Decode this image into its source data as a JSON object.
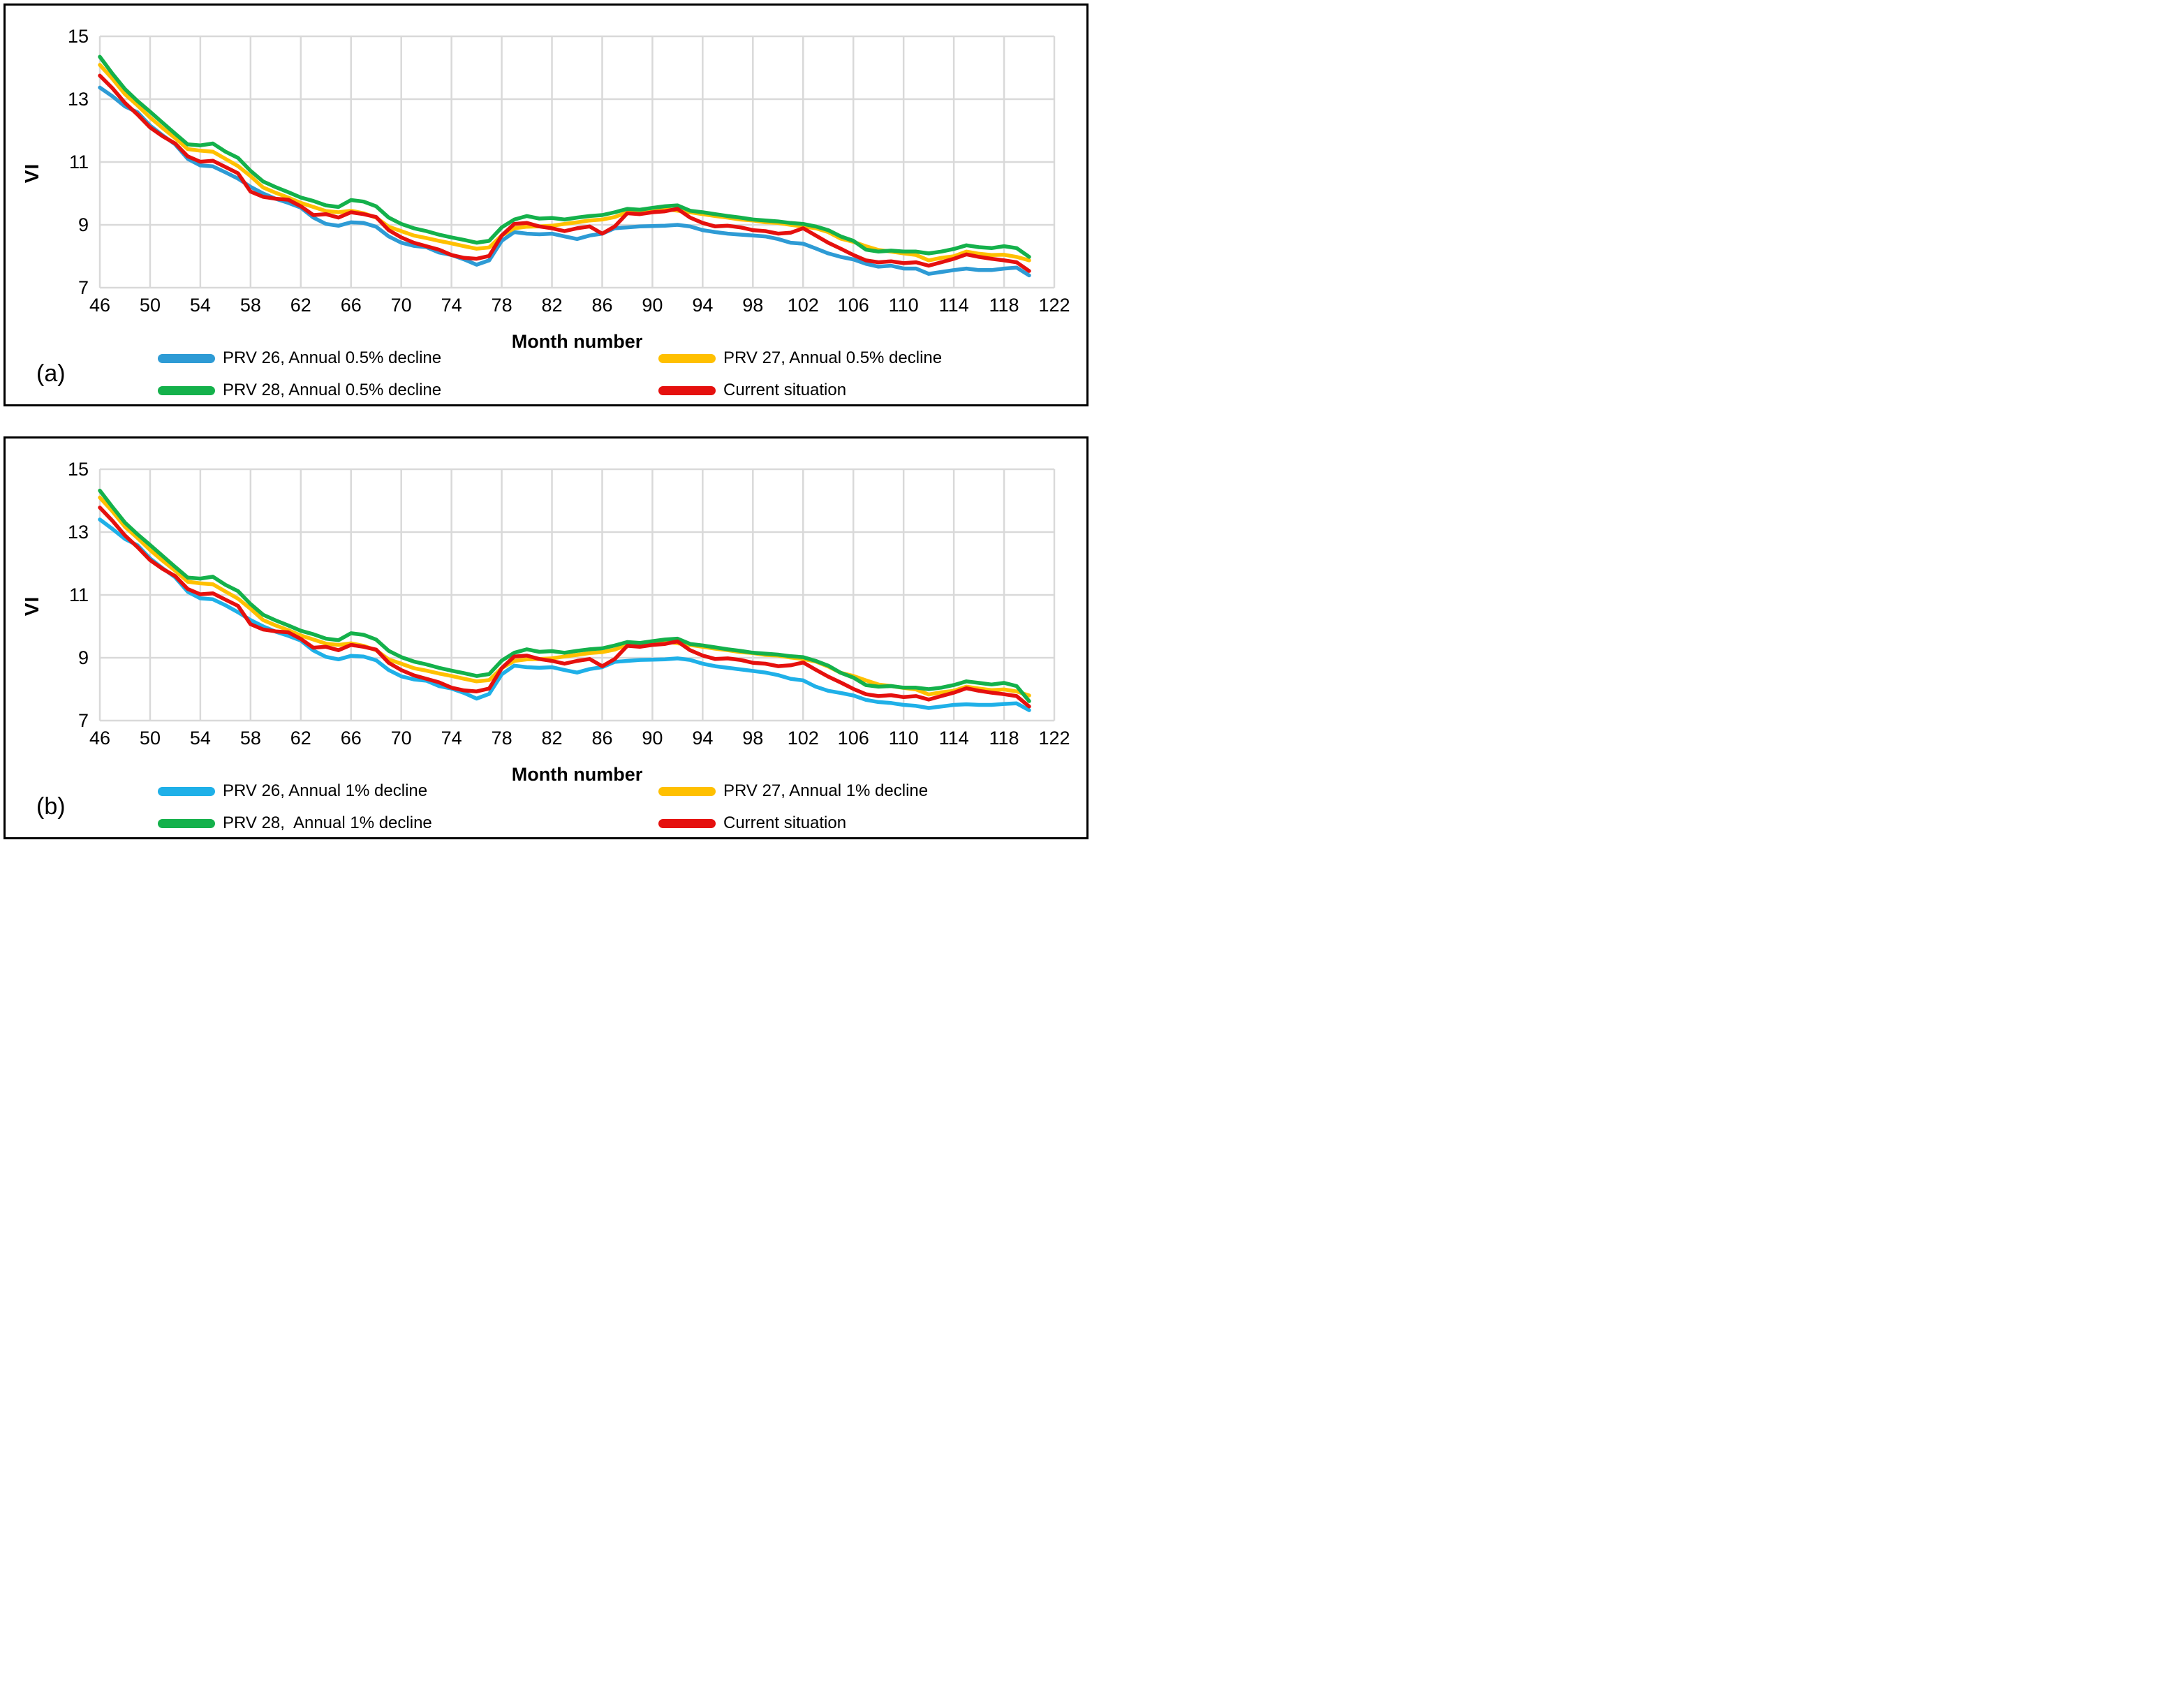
{
  "chart_data": [
    {
      "type": "line",
      "panel_label": "(a)",
      "xlabel": "Month number",
      "ylabel": "VI",
      "xlim": [
        46,
        122
      ],
      "ylim": [
        7,
        15
      ],
      "x_ticks": [
        46,
        50,
        54,
        58,
        62,
        66,
        70,
        74,
        78,
        82,
        86,
        90,
        94,
        98,
        102,
        106,
        110,
        114,
        118,
        122
      ],
      "y_ticks": [
        7,
        9,
        11,
        13,
        15
      ],
      "grid": true,
      "legend_position": "bottom",
      "x": [
        46,
        47,
        48,
        49,
        50,
        51,
        52,
        53,
        54,
        55,
        56,
        57,
        58,
        59,
        60,
        61,
        62,
        63,
        64,
        65,
        66,
        67,
        68,
        69,
        70,
        71,
        72,
        73,
        74,
        75,
        76,
        77,
        78,
        79,
        80,
        81,
        82,
        83,
        84,
        85,
        86,
        87,
        88,
        89,
        90,
        91,
        92,
        93,
        94,
        95,
        96,
        97,
        98,
        99,
        100,
        101,
        102,
        103,
        104,
        105,
        106,
        107,
        108,
        109,
        110,
        111,
        112,
        113,
        114,
        115,
        116,
        117,
        118,
        119,
        120
      ],
      "series": [
        {
          "name": "PRV 26, Annual 0.5% decline",
          "color": "#2E9BD5",
          "values": [
            13.37,
            13.09,
            12.77,
            12.58,
            12.16,
            11.85,
            11.56,
            11.1,
            10.89,
            10.86,
            10.67,
            10.47,
            10.21,
            10.0,
            9.83,
            9.7,
            9.55,
            9.23,
            9.03,
            8.97,
            9.08,
            9.06,
            8.94,
            8.63,
            8.43,
            8.33,
            8.29,
            8.12,
            8.04,
            7.9,
            7.73,
            7.87,
            8.49,
            8.77,
            8.72,
            8.7,
            8.72,
            8.63,
            8.55,
            8.66,
            8.72,
            8.89,
            8.92,
            8.95,
            8.96,
            8.97,
            9.0,
            8.95,
            8.83,
            8.77,
            8.72,
            8.69,
            8.66,
            8.63,
            8.55,
            8.43,
            8.4,
            8.25,
            8.09,
            7.98,
            7.9,
            7.76,
            7.67,
            7.7,
            7.61,
            7.61,
            7.44,
            7.5,
            7.56,
            7.61,
            7.56,
            7.56,
            7.61,
            7.64,
            7.39
          ]
        },
        {
          "name": "PRV 27, Annual 0.5% decline",
          "color": "#FFC000",
          "values": [
            14.09,
            13.65,
            13.16,
            12.8,
            12.42,
            12.08,
            11.76,
            11.41,
            11.36,
            11.33,
            11.1,
            10.87,
            10.55,
            10.19,
            10.02,
            9.87,
            9.7,
            9.57,
            9.44,
            9.4,
            9.45,
            9.37,
            9.23,
            8.94,
            8.8,
            8.66,
            8.58,
            8.49,
            8.41,
            8.32,
            8.24,
            8.28,
            8.66,
            8.89,
            8.94,
            8.95,
            8.97,
            9.03,
            9.08,
            9.14,
            9.17,
            9.25,
            9.4,
            9.4,
            9.45,
            9.51,
            9.45,
            9.4,
            9.34,
            9.28,
            9.23,
            9.17,
            9.14,
            9.08,
            9.06,
            9.0,
            8.95,
            8.89,
            8.77,
            8.56,
            8.46,
            8.32,
            8.2,
            8.15,
            8.09,
            8.04,
            7.87,
            7.95,
            8.0,
            8.15,
            8.08,
            8.04,
            8.05,
            7.98,
            7.87
          ]
        },
        {
          "name": "PRV 28, Annual 0.5% decline",
          "color": "#14B14B",
          "values": [
            14.35,
            13.81,
            13.32,
            12.94,
            12.6,
            12.25,
            11.9,
            11.56,
            11.53,
            11.59,
            11.33,
            11.13,
            10.72,
            10.38,
            10.2,
            10.04,
            9.87,
            9.76,
            9.62,
            9.57,
            9.79,
            9.74,
            9.59,
            9.23,
            9.03,
            8.89,
            8.8,
            8.69,
            8.6,
            8.52,
            8.43,
            8.49,
            8.92,
            9.17,
            9.28,
            9.2,
            9.22,
            9.17,
            9.23,
            9.28,
            9.31,
            9.4,
            9.51,
            9.48,
            9.54,
            9.59,
            9.62,
            9.45,
            9.4,
            9.34,
            9.28,
            9.23,
            9.17,
            9.14,
            9.11,
            9.06,
            9.03,
            8.95,
            8.83,
            8.63,
            8.49,
            8.21,
            8.15,
            8.18,
            8.15,
            8.15,
            8.09,
            8.15,
            8.23,
            8.35,
            8.29,
            8.26,
            8.32,
            8.26,
            7.98
          ]
        },
        {
          "name": "Current situation",
          "color": "#E5100E",
          "values": [
            13.75,
            13.35,
            12.88,
            12.51,
            12.1,
            11.82,
            11.59,
            11.18,
            11.01,
            11.04,
            10.84,
            10.64,
            10.06,
            9.89,
            9.83,
            9.8,
            9.59,
            9.31,
            9.34,
            9.23,
            9.4,
            9.34,
            9.25,
            8.83,
            8.6,
            8.43,
            8.32,
            8.21,
            8.04,
            7.95,
            7.92,
            8.01,
            8.66,
            9.03,
            9.06,
            8.95,
            8.89,
            8.8,
            8.89,
            8.95,
            8.72,
            8.95,
            9.37,
            9.34,
            9.4,
            9.43,
            9.51,
            9.23,
            9.06,
            8.95,
            8.97,
            8.92,
            8.83,
            8.8,
            8.72,
            8.75,
            8.89,
            8.66,
            8.43,
            8.24,
            8.04,
            7.87,
            7.81,
            7.84,
            7.78,
            7.81,
            7.7,
            7.81,
            7.92,
            8.06,
            7.98,
            7.92,
            7.87,
            7.81,
            7.53
          ]
        }
      ]
    },
    {
      "type": "line",
      "panel_label": "(b)",
      "xlabel": "Month number",
      "ylabel": "VI",
      "xlim": [
        46,
        122
      ],
      "ylim": [
        7,
        15
      ],
      "x_ticks": [
        46,
        50,
        54,
        58,
        62,
        66,
        70,
        74,
        78,
        82,
        86,
        90,
        94,
        98,
        102,
        106,
        110,
        114,
        118,
        122
      ],
      "y_ticks": [
        7,
        9,
        11,
        13,
        15
      ],
      "grid": true,
      "legend_position": "bottom",
      "x": [
        46,
        47,
        48,
        49,
        50,
        51,
        52,
        53,
        54,
        55,
        56,
        57,
        58,
        59,
        60,
        61,
        62,
        63,
        64,
        65,
        66,
        67,
        68,
        69,
        70,
        71,
        72,
        73,
        74,
        75,
        76,
        77,
        78,
        79,
        80,
        81,
        82,
        83,
        84,
        85,
        86,
        87,
        88,
        89,
        90,
        91,
        92,
        93,
        94,
        95,
        96,
        97,
        98,
        99,
        100,
        101,
        102,
        103,
        104,
        105,
        106,
        107,
        108,
        109,
        110,
        111,
        112,
        113,
        114,
        115,
        116,
        117,
        118,
        119,
        120
      ],
      "series": [
        {
          "name": "PRV 26, Annual 1% decline",
          "color": "#1FB0E8",
          "values": [
            13.4,
            13.1,
            12.78,
            12.58,
            12.16,
            11.85,
            11.56,
            11.1,
            10.89,
            10.86,
            10.67,
            10.45,
            10.2,
            10.0,
            9.83,
            9.7,
            9.55,
            9.23,
            9.03,
            8.95,
            9.06,
            9.04,
            8.92,
            8.61,
            8.41,
            8.31,
            8.27,
            8.1,
            8.02,
            7.88,
            7.7,
            7.85,
            8.47,
            8.75,
            8.7,
            8.68,
            8.7,
            8.61,
            8.53,
            8.64,
            8.7,
            8.87,
            8.9,
            8.93,
            8.94,
            8.95,
            8.98,
            8.93,
            8.81,
            8.73,
            8.68,
            8.63,
            8.58,
            8.53,
            8.45,
            8.33,
            8.28,
            8.08,
            7.95,
            7.88,
            7.8,
            7.66,
            7.59,
            7.56,
            7.5,
            7.47,
            7.4,
            7.45,
            7.5,
            7.52,
            7.5,
            7.5,
            7.53,
            7.55,
            7.33
          ]
        },
        {
          "name": "PRV 27, Annual 1% decline",
          "color": "#FFC000",
          "values": [
            14.1,
            13.66,
            13.17,
            12.81,
            12.43,
            12.09,
            11.77,
            11.42,
            11.37,
            11.34,
            11.11,
            10.88,
            10.56,
            10.2,
            10.03,
            9.88,
            9.71,
            9.58,
            9.45,
            9.41,
            9.46,
            9.38,
            9.24,
            8.95,
            8.81,
            8.67,
            8.59,
            8.5,
            8.42,
            8.33,
            8.25,
            8.29,
            8.67,
            8.9,
            8.95,
            8.96,
            8.98,
            9.04,
            9.09,
            9.15,
            9.18,
            9.26,
            9.41,
            9.41,
            9.46,
            9.52,
            9.46,
            9.41,
            9.35,
            9.29,
            9.24,
            9.18,
            9.15,
            9.09,
            9.07,
            9.01,
            8.96,
            8.88,
            8.72,
            8.52,
            8.42,
            8.28,
            8.15,
            8.1,
            8.04,
            7.99,
            7.83,
            7.9,
            7.95,
            8.08,
            8.02,
            7.97,
            7.99,
            7.93,
            7.8
          ]
        },
        {
          "name": "PRV 28,  Annual 1% decline",
          "color": "#14B14B",
          "values": [
            14.32,
            13.8,
            13.3,
            12.93,
            12.59,
            12.24,
            11.89,
            11.55,
            11.52,
            11.58,
            11.32,
            11.12,
            10.71,
            10.37,
            10.19,
            10.03,
            9.86,
            9.75,
            9.61,
            9.56,
            9.78,
            9.73,
            9.58,
            9.22,
            9.02,
            8.88,
            8.79,
            8.68,
            8.59,
            8.51,
            8.42,
            8.48,
            8.91,
            9.16,
            9.27,
            9.19,
            9.21,
            9.16,
            9.22,
            9.27,
            9.3,
            9.39,
            9.5,
            9.47,
            9.53,
            9.58,
            9.61,
            9.44,
            9.39,
            9.33,
            9.27,
            9.22,
            9.16,
            9.13,
            9.1,
            9.05,
            9.02,
            8.9,
            8.75,
            8.52,
            8.37,
            8.13,
            8.08,
            8.1,
            8.05,
            8.05,
            8.0,
            8.05,
            8.13,
            8.25,
            8.2,
            8.15,
            8.2,
            8.1,
            7.62
          ]
        },
        {
          "name": "Current situation",
          "color": "#E5100E",
          "values": [
            13.78,
            13.36,
            12.89,
            12.52,
            12.11,
            11.83,
            11.6,
            11.19,
            11.02,
            11.05,
            10.85,
            10.65,
            10.07,
            9.9,
            9.84,
            9.81,
            9.6,
            9.32,
            9.35,
            9.24,
            9.41,
            9.35,
            9.26,
            8.84,
            8.61,
            8.44,
            8.33,
            8.22,
            8.05,
            7.96,
            7.93,
            8.02,
            8.67,
            9.04,
            9.07,
            8.96,
            8.9,
            8.81,
            8.9,
            8.96,
            8.73,
            8.96,
            9.38,
            9.35,
            9.41,
            9.44,
            9.52,
            9.24,
            9.07,
            8.96,
            8.98,
            8.93,
            8.84,
            8.81,
            8.73,
            8.76,
            8.85,
            8.62,
            8.4,
            8.21,
            8.01,
            7.84,
            7.78,
            7.81,
            7.75,
            7.78,
            7.67,
            7.78,
            7.89,
            8.03,
            7.95,
            7.89,
            7.84,
            7.78,
            7.45
          ]
        }
      ]
    }
  ],
  "style": {
    "gridline_color": "#D9D9D9",
    "axis_text_color": "#000000",
    "line_width": 5.5
  }
}
